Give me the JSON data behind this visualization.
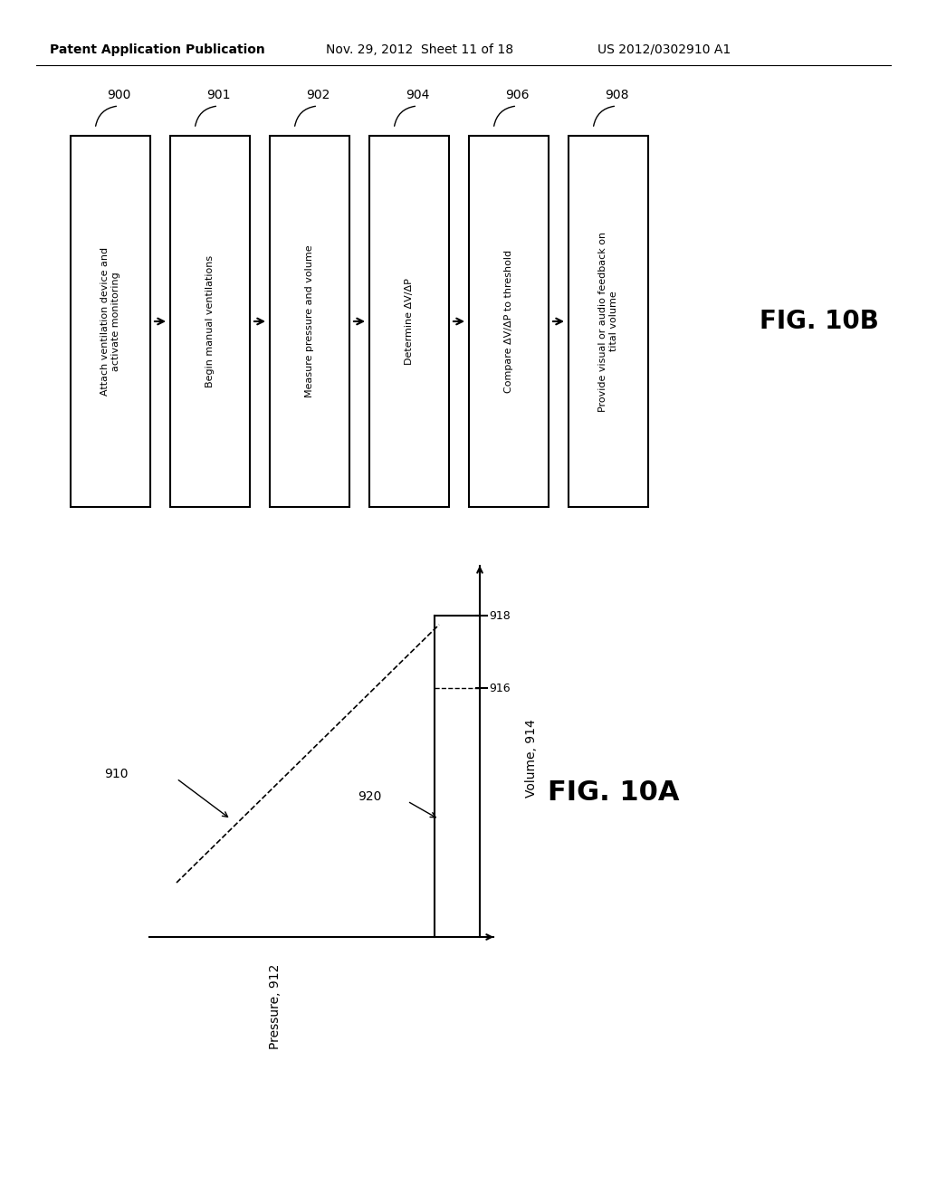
{
  "bg_color": "#ffffff",
  "header_left": "Patent Application Publication",
  "header_center": "Nov. 29, 2012  Sheet 11 of 18",
  "header_right": "US 2012/0302910 A1",
  "fig10b_label": "FIG. 10B",
  "fig10a_label": "FIG. 10A",
  "flowchart_boxes": [
    {
      "id": "900",
      "text": "Attach ventilation device and\nactivate monitoring"
    },
    {
      "id": "901",
      "text": "Begin manual ventilations"
    },
    {
      "id": "902",
      "text": "Measure pressure and volume"
    },
    {
      "id": "904",
      "text": "Determine ΔV/ΔP"
    },
    {
      "id": "906",
      "text": "Compare ΔV/ΔP to threshold"
    },
    {
      "id": "908",
      "text": "Provide visual or audio feedback on\ntital volume"
    }
  ],
  "pressure_label": "Pressure, 912",
  "volume_label": "Volume, 914",
  "label_910": "910",
  "label_916": "916",
  "label_918": "918",
  "label_920": "920"
}
